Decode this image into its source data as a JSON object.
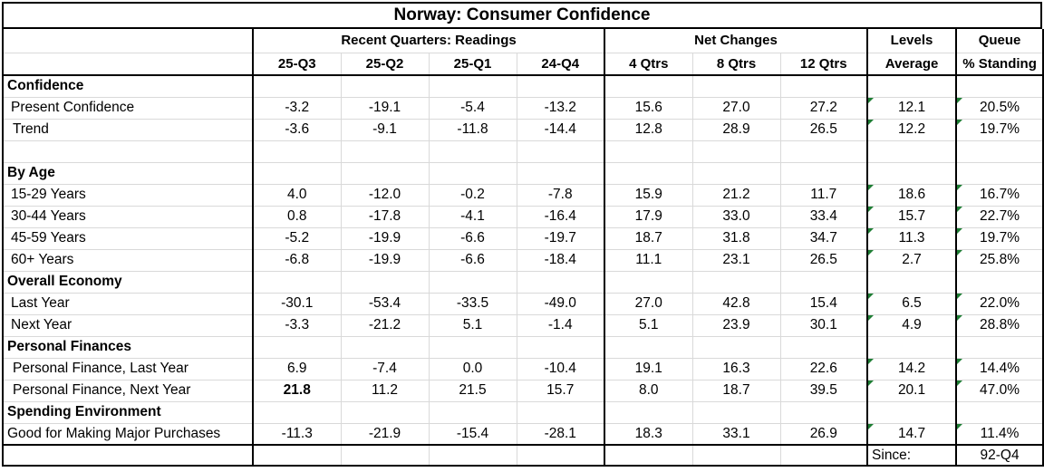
{
  "title": "Norway: Consumer Confidence",
  "groups": {
    "recent": "Recent Quarters: Readings",
    "net": "Net Changes",
    "levels": "Levels",
    "queue": "Queue"
  },
  "columns": [
    "25-Q3",
    "25-Q2",
    "25-Q1",
    "24-Q4",
    "4 Qtrs",
    "8 Qtrs",
    "12 Qtrs",
    "Average",
    "% Standing"
  ],
  "sections": [
    {
      "title": "Confidence",
      "rows": [
        {
          "label": "Present Confidence",
          "values": [
            "-3.2",
            "-19.1",
            "-5.4",
            "-13.2",
            "15.6",
            "27.0",
            "27.2",
            "12.1",
            "20.5%"
          ]
        },
        {
          "label": "Trend",
          "values": [
            "-3.6",
            "-9.1",
            "-11.8",
            "-14.4",
            "12.8",
            "28.9",
            "26.5",
            "12.2",
            "19.7%"
          ]
        }
      ]
    },
    {
      "title": "By Age",
      "rows": [
        {
          "label": "15-29 Years",
          "values": [
            "4.0",
            "-12.0",
            "-0.2",
            "-7.8",
            "15.9",
            "21.2",
            "11.7",
            "18.6",
            "16.7%"
          ]
        },
        {
          "label": "30-44 Years",
          "values": [
            "0.8",
            "-17.8",
            "-4.1",
            "-16.4",
            "17.9",
            "33.0",
            "33.4",
            "15.7",
            "22.7%"
          ]
        },
        {
          "label": "45-59 Years",
          "values": [
            "-5.2",
            "-19.9",
            "-6.6",
            "-19.7",
            "18.7",
            "31.8",
            "34.7",
            "11.3",
            "19.7%"
          ]
        },
        {
          "label": "60+ Years",
          "values": [
            "-6.8",
            "-19.9",
            "-6.6",
            "-18.4",
            "11.1",
            "23.1",
            "26.5",
            "2.7",
            "25.8%"
          ]
        }
      ]
    },
    {
      "title": "Overall Economy",
      "rows": [
        {
          "label": "Last Year",
          "values": [
            "-30.1",
            "-53.4",
            "-33.5",
            "-49.0",
            "27.0",
            "42.8",
            "15.4",
            "6.5",
            "22.0%"
          ]
        },
        {
          "label": "Next Year",
          "values": [
            "-3.3",
            "-21.2",
            "5.1",
            "-1.4",
            "5.1",
            "23.9",
            "30.1",
            "4.9",
            "28.8%"
          ]
        }
      ]
    },
    {
      "title": "Personal Finances",
      "rows": [
        {
          "label": "Personal Finance, Last Year",
          "values": [
            "6.9",
            "-7.4",
            "0.0",
            "-10.4",
            "19.1",
            "16.3",
            "22.6",
            "14.2",
            "14.4%"
          ]
        },
        {
          "label": "Personal Finance, Next Year",
          "values": [
            "21.8",
            "11.2",
            "21.5",
            "15.7",
            "8.0",
            "18.7",
            "39.5",
            "20.1",
            "47.0%"
          ]
        }
      ]
    },
    {
      "title": "Spending Environment",
      "rows": [
        {
          "label": "Good for Making Major Purchases",
          "values": [
            "-11.3",
            "-21.9",
            "-15.4",
            "-28.1",
            "18.3",
            "33.1",
            "26.9",
            "14.7",
            "11.4%"
          ]
        }
      ]
    }
  ],
  "footer": {
    "since_label": "Since:",
    "since_value": "92-Q4"
  },
  "colors": {
    "border": "#000000",
    "gridline": "#d9d9d9",
    "indicator": "#1e7e34"
  }
}
